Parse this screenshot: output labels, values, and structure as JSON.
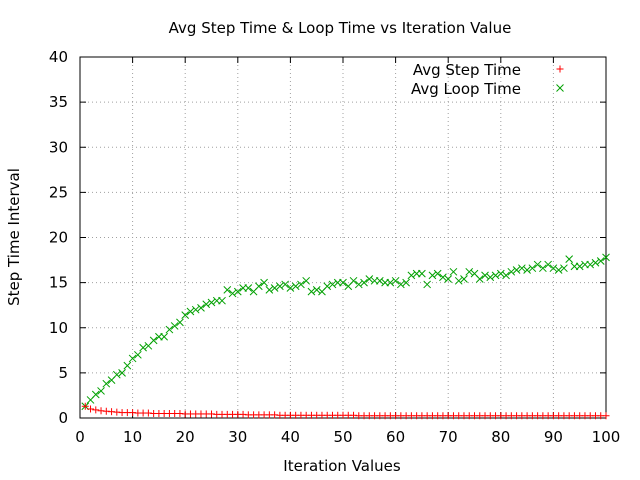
{
  "chart_data": {
    "type": "scatter",
    "title": "Avg Step Time & Loop Time vs Iteration Value",
    "xlabel": "Iteration Values",
    "ylabel": "Step Time Interval",
    "xlim": [
      0,
      100
    ],
    "ylim": [
      0,
      40
    ],
    "xticks": [
      0,
      10,
      20,
      30,
      40,
      50,
      60,
      70,
      80,
      90,
      100
    ],
    "yticks": [
      0,
      5,
      10,
      15,
      20,
      25,
      30,
      35,
      40
    ],
    "grid": true,
    "legend_position": "top-right",
    "series": [
      {
        "name": "Avg Step Time",
        "marker": "plus",
        "color": "#ff0000",
        "x": [
          1,
          2,
          3,
          4,
          5,
          6,
          7,
          8,
          9,
          10,
          11,
          12,
          13,
          14,
          15,
          16,
          17,
          18,
          19,
          20,
          21,
          22,
          23,
          24,
          25,
          26,
          27,
          28,
          29,
          30,
          31,
          32,
          33,
          34,
          35,
          36,
          37,
          38,
          39,
          40,
          41,
          42,
          43,
          44,
          45,
          46,
          47,
          48,
          49,
          50,
          51,
          52,
          53,
          54,
          55,
          56,
          57,
          58,
          59,
          60,
          61,
          62,
          63,
          64,
          65,
          66,
          67,
          68,
          69,
          70,
          71,
          72,
          73,
          74,
          75,
          76,
          77,
          78,
          79,
          80,
          81,
          82,
          83,
          84,
          85,
          86,
          87,
          88,
          89,
          90,
          91,
          92,
          93,
          94,
          95,
          96,
          97,
          98,
          99,
          100
        ],
        "y": [
          1.3,
          1.0,
          0.9,
          0.8,
          0.75,
          0.7,
          0.65,
          0.6,
          0.6,
          0.6,
          0.55,
          0.55,
          0.55,
          0.5,
          0.5,
          0.5,
          0.5,
          0.5,
          0.5,
          0.45,
          0.45,
          0.45,
          0.45,
          0.45,
          0.45,
          0.4,
          0.4,
          0.4,
          0.4,
          0.4,
          0.4,
          0.35,
          0.35,
          0.35,
          0.35,
          0.35,
          0.35,
          0.3,
          0.3,
          0.3,
          0.3,
          0.3,
          0.3,
          0.3,
          0.3,
          0.3,
          0.3,
          0.3,
          0.3,
          0.3,
          0.3,
          0.3,
          0.25,
          0.25,
          0.25,
          0.25,
          0.25,
          0.25,
          0.25,
          0.25,
          0.25,
          0.25,
          0.25,
          0.25,
          0.25,
          0.25,
          0.25,
          0.25,
          0.25,
          0.25,
          0.25,
          0.25,
          0.25,
          0.25,
          0.25,
          0.25,
          0.25,
          0.25,
          0.25,
          0.25,
          0.25,
          0.25,
          0.25,
          0.25,
          0.25,
          0.25,
          0.25,
          0.25,
          0.25,
          0.25,
          0.25,
          0.25,
          0.25,
          0.25,
          0.25,
          0.25,
          0.25,
          0.25,
          0.25,
          0.25
        ]
      },
      {
        "name": "Avg Loop Time",
        "marker": "cross",
        "color": "#00a000",
        "x": [
          1,
          2,
          3,
          4,
          5,
          6,
          7,
          8,
          9,
          10,
          11,
          12,
          13,
          14,
          15,
          16,
          17,
          18,
          19,
          20,
          21,
          22,
          23,
          24,
          25,
          26,
          27,
          28,
          29,
          30,
          31,
          32,
          33,
          34,
          35,
          36,
          37,
          38,
          39,
          40,
          41,
          42,
          43,
          44,
          45,
          46,
          47,
          48,
          49,
          50,
          51,
          52,
          53,
          54,
          55,
          56,
          57,
          58,
          59,
          60,
          61,
          62,
          63,
          64,
          65,
          66,
          67,
          68,
          69,
          70,
          71,
          72,
          73,
          74,
          75,
          76,
          77,
          78,
          79,
          80,
          81,
          82,
          83,
          84,
          85,
          86,
          87,
          88,
          89,
          90,
          91,
          92,
          93,
          94,
          95,
          96,
          97,
          98,
          99,
          100
        ],
        "y": [
          1.3,
          2.0,
          2.6,
          3.0,
          3.8,
          4.2,
          4.8,
          5.0,
          5.8,
          6.6,
          7.0,
          7.8,
          8.0,
          8.6,
          9.0,
          9.0,
          9.8,
          10.2,
          10.6,
          11.4,
          11.8,
          12.0,
          12.2,
          12.6,
          12.8,
          13.0,
          13.0,
          14.2,
          13.8,
          14.0,
          14.4,
          14.4,
          14.0,
          14.6,
          15.0,
          14.2,
          14.4,
          14.6,
          14.8,
          14.4,
          14.6,
          14.8,
          15.2,
          14.0,
          14.2,
          14.0,
          14.6,
          14.8,
          15.0,
          15.0,
          14.6,
          15.2,
          14.8,
          15.0,
          15.4,
          15.2,
          15.2,
          15.0,
          15.0,
          15.2,
          14.8,
          15.0,
          15.8,
          16.0,
          16.0,
          14.8,
          15.8,
          16.0,
          15.6,
          15.4,
          16.2,
          15.2,
          15.4,
          16.2,
          16.0,
          15.4,
          15.8,
          15.6,
          15.8,
          16.0,
          15.8,
          16.2,
          16.4,
          16.6,
          16.4,
          16.6,
          17.0,
          16.6,
          17.0,
          16.6,
          16.4,
          16.6,
          17.6,
          16.8,
          16.8,
          17.0,
          17.0,
          17.2,
          17.4,
          17.8
        ]
      }
    ]
  }
}
